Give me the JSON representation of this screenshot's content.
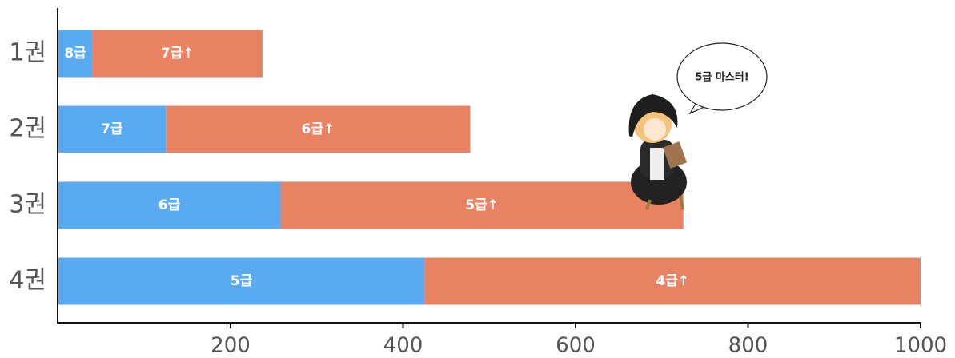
{
  "chart_data": {
    "type": "stacked-bar-horizontal",
    "categories": [
      "1권",
      "2권",
      "3권",
      "4권"
    ],
    "series": [
      {
        "color": "#5aaaf2",
        "values": [
          40,
          125,
          258,
          425
        ],
        "labels": [
          "8급",
          "7급",
          "6급",
          "5급"
        ]
      },
      {
        "color": "#e98163",
        "values": [
          197,
          353,
          467,
          575
        ],
        "labels": [
          "7급↑",
          "6급↑",
          "5급↑",
          "4급↑"
        ]
      }
    ],
    "xlim": [
      0,
      1000
    ],
    "xticks": [
      200,
      400,
      600,
      800,
      1000
    ],
    "annotation": "5급 마스터!"
  }
}
